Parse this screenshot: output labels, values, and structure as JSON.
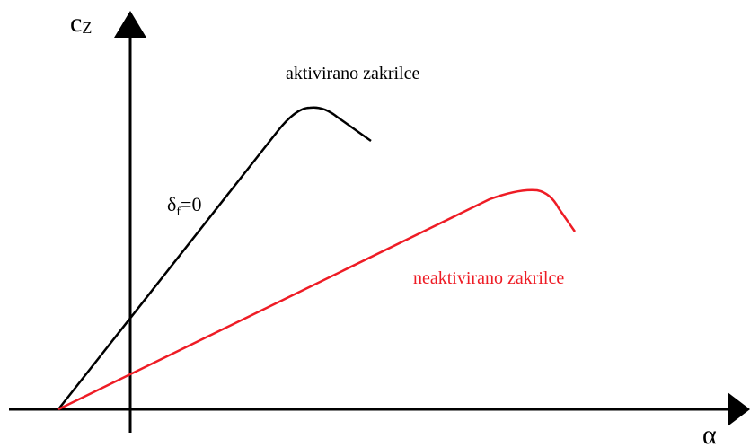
{
  "diagram": {
    "y_axis_label": "c",
    "y_axis_subscript": "Z",
    "x_axis_label": "α",
    "curve_black_label": "aktivirano zakrilce",
    "curve_red_label": "neaktivirano zakrilce",
    "annotation_symbol": "δ",
    "annotation_subscript": "f",
    "annotation_value": "=0",
    "colors": {
      "axes": "#000000",
      "curve_black": "#000000",
      "curve_red": "#ee1c25"
    }
  }
}
